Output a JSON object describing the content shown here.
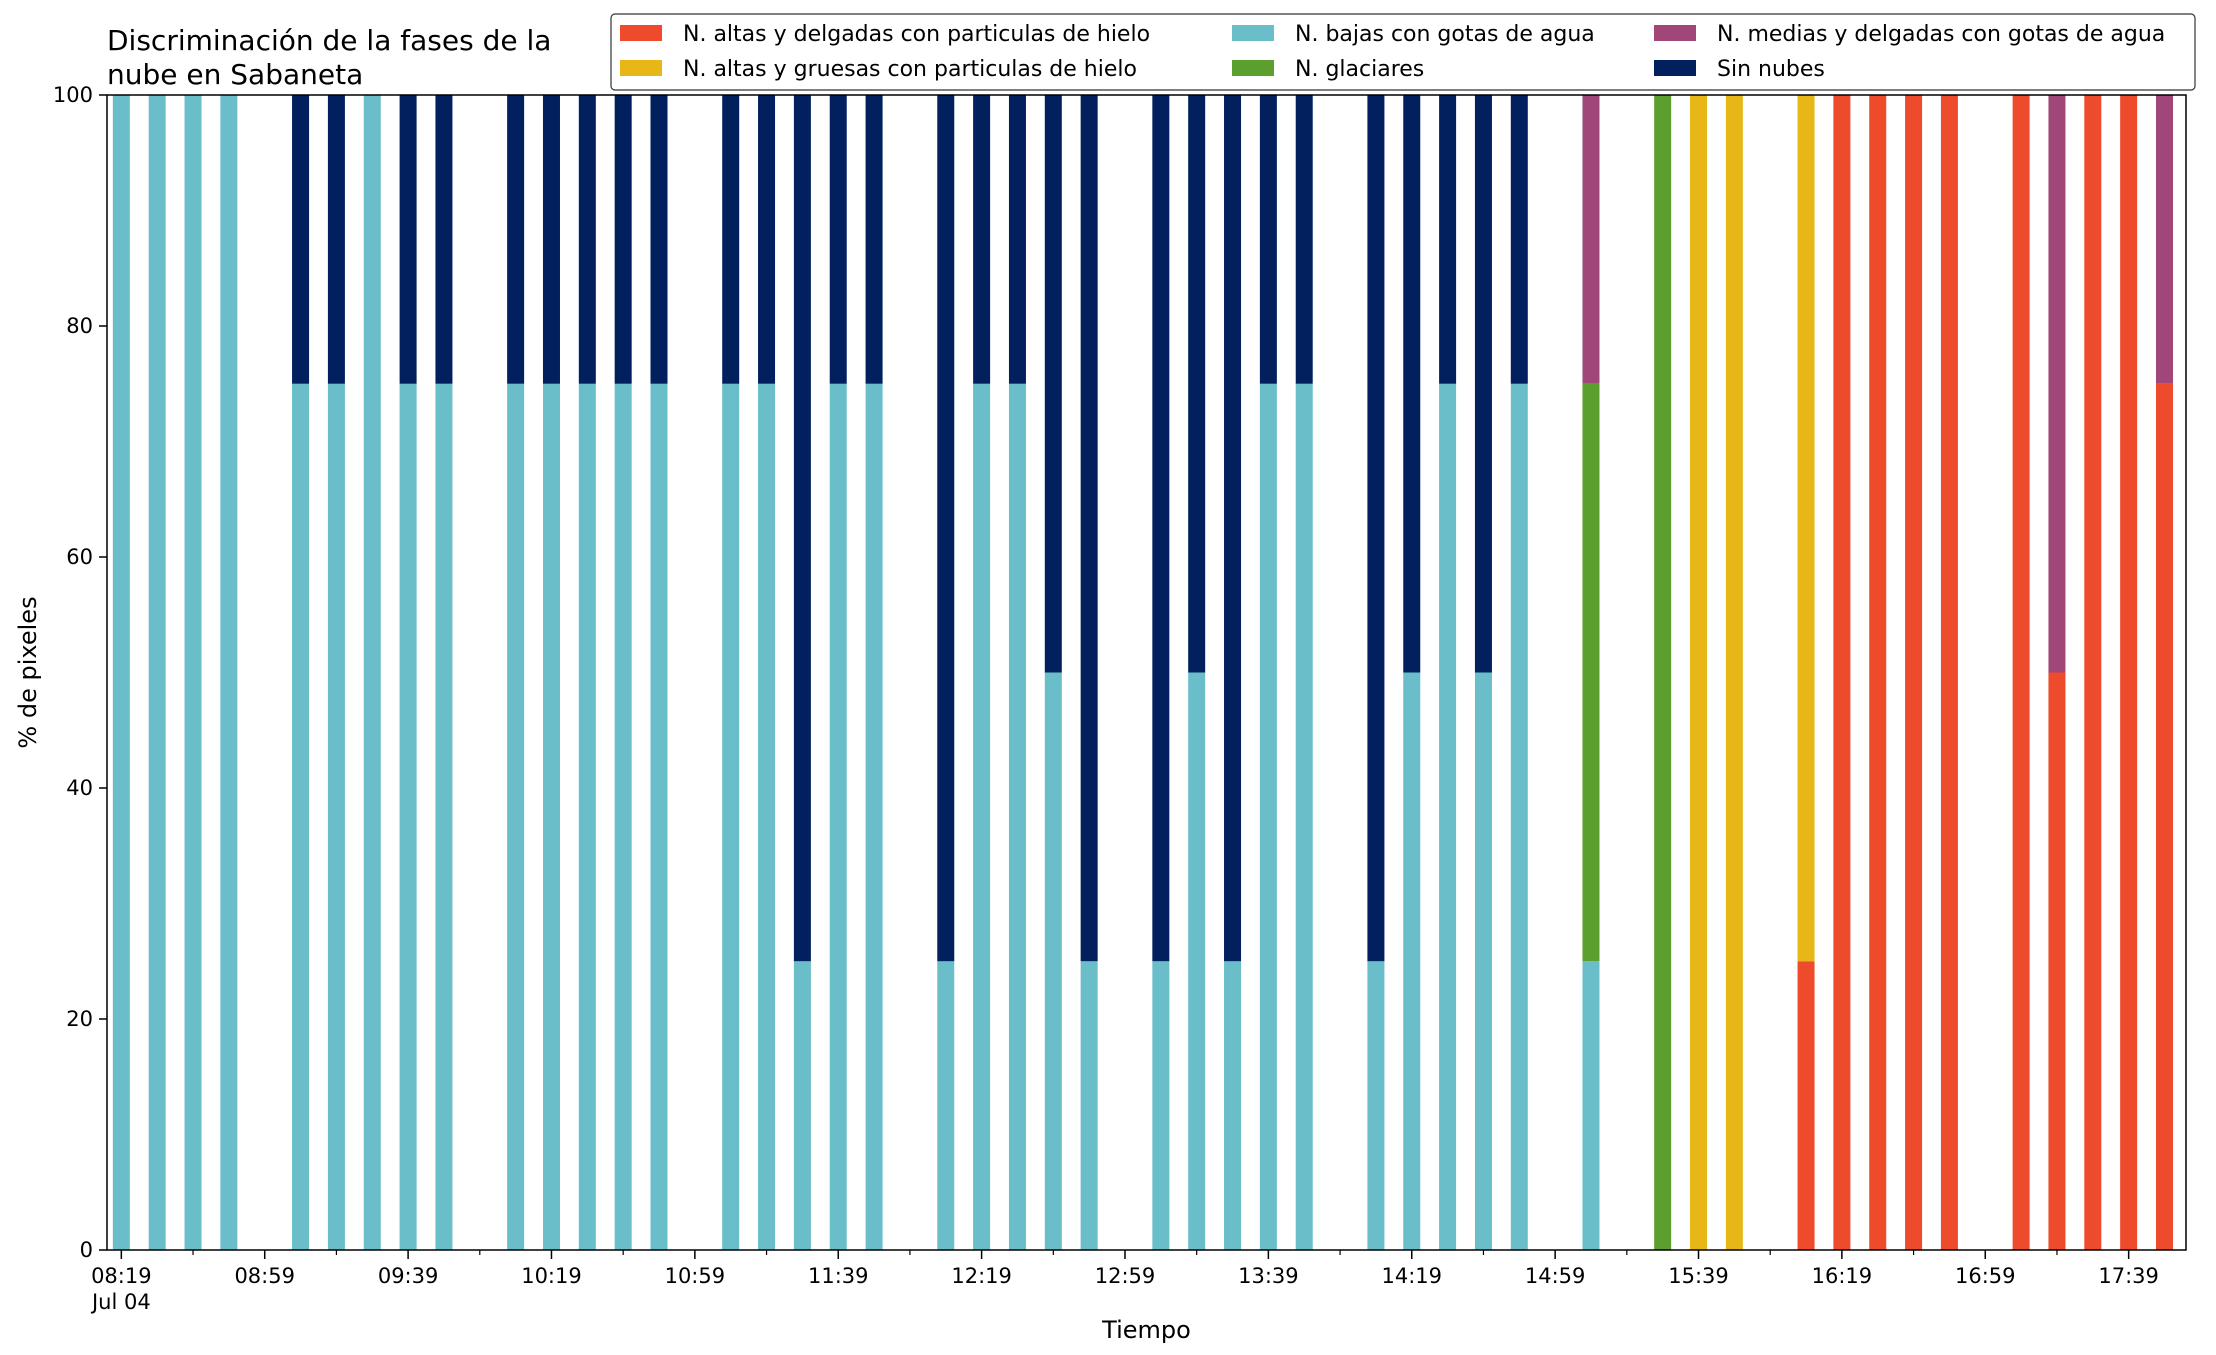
{
  "chart_data": {
    "type": "bar",
    "stacked": true,
    "title": "Discriminación de la fases de la\nnube en Sabaneta",
    "xlabel": "Tiempo",
    "ylabel": "% de pixeles",
    "ylim": [
      0,
      100
    ],
    "yticks": [
      0,
      20,
      40,
      60,
      80,
      100
    ],
    "xlim_minutes": [
      "08:15",
      "17:55"
    ],
    "x_tick_labels": [
      "08:19",
      "08:59",
      "09:39",
      "10:19",
      "10:59",
      "11:39",
      "12:19",
      "12:59",
      "13:39",
      "14:19",
      "14:59",
      "15:39",
      "16:19",
      "16:59",
      "17:39"
    ],
    "x_date_label": "Jul 04",
    "minor_tick_interval_min": 20,
    "grid": false,
    "legend_position": "top-right",
    "legend_columns": 3,
    "series_order": [
      "altas_delgadas_hielo",
      "altas_gruesas_hielo",
      "bajas_gotas",
      "glaciares",
      "medias_delgadas_gotas",
      "sin_nubes"
    ],
    "legend": [
      {
        "key": "altas_delgadas_hielo",
        "name": "N. altas y delgadas con particulas de hielo",
        "color": "#ee4a2c"
      },
      {
        "key": "bajas_gotas",
        "name": "N. bajas con gotas de agua",
        "color": "#69bec9"
      },
      {
        "key": "medias_delgadas_gotas",
        "name": "N. medias y delgadas con gotas de agua",
        "color": "#a04678"
      },
      {
        "key": "altas_gruesas_hielo",
        "name": "N. altas y gruesas con particulas de hielo",
        "color": "#e6b716"
      },
      {
        "key": "glaciares",
        "name": "N. glaciares",
        "color": "#5b9f2e"
      },
      {
        "key": "sin_nubes",
        "name": "Sin nubes",
        "color": "#021f5e"
      }
    ],
    "bars": [
      {
        "time": "08:19",
        "bajas_gotas": 100
      },
      {
        "time": "08:29",
        "bajas_gotas": 100
      },
      {
        "time": "08:39",
        "bajas_gotas": 100
      },
      {
        "time": "08:49",
        "bajas_gotas": 100
      },
      {
        "time": "09:09",
        "bajas_gotas": 75,
        "sin_nubes": 25
      },
      {
        "time": "09:19",
        "bajas_gotas": 75,
        "sin_nubes": 25
      },
      {
        "time": "09:29",
        "bajas_gotas": 100
      },
      {
        "time": "09:39",
        "bajas_gotas": 75,
        "sin_nubes": 25
      },
      {
        "time": "09:49",
        "bajas_gotas": 75,
        "sin_nubes": 25
      },
      {
        "time": "10:09",
        "bajas_gotas": 75,
        "sin_nubes": 25
      },
      {
        "time": "10:19",
        "bajas_gotas": 75,
        "sin_nubes": 25
      },
      {
        "time": "10:29",
        "bajas_gotas": 75,
        "sin_nubes": 25
      },
      {
        "time": "10:39",
        "bajas_gotas": 75,
        "sin_nubes": 25
      },
      {
        "time": "10:49",
        "bajas_gotas": 75,
        "sin_nubes": 25
      },
      {
        "time": "11:09",
        "bajas_gotas": 75,
        "sin_nubes": 25
      },
      {
        "time": "11:19",
        "bajas_gotas": 75,
        "sin_nubes": 25
      },
      {
        "time": "11:29",
        "bajas_gotas": 25,
        "sin_nubes": 75
      },
      {
        "time": "11:39",
        "bajas_gotas": 75,
        "sin_nubes": 25
      },
      {
        "time": "11:49",
        "bajas_gotas": 75,
        "sin_nubes": 25
      },
      {
        "time": "12:09",
        "bajas_gotas": 25,
        "sin_nubes": 75
      },
      {
        "time": "12:19",
        "bajas_gotas": 75,
        "sin_nubes": 25
      },
      {
        "time": "12:29",
        "bajas_gotas": 75,
        "sin_nubes": 25
      },
      {
        "time": "12:39",
        "bajas_gotas": 50,
        "sin_nubes": 50
      },
      {
        "time": "12:49",
        "bajas_gotas": 25,
        "sin_nubes": 75
      },
      {
        "time": "13:09",
        "bajas_gotas": 25,
        "sin_nubes": 75
      },
      {
        "time": "13:19",
        "bajas_gotas": 50,
        "sin_nubes": 50
      },
      {
        "time": "13:29",
        "bajas_gotas": 25,
        "sin_nubes": 75
      },
      {
        "time": "13:39",
        "bajas_gotas": 75,
        "sin_nubes": 25
      },
      {
        "time": "13:49",
        "bajas_gotas": 75,
        "sin_nubes": 25
      },
      {
        "time": "14:09",
        "bajas_gotas": 25,
        "sin_nubes": 75
      },
      {
        "time": "14:19",
        "bajas_gotas": 50,
        "sin_nubes": 50
      },
      {
        "time": "14:29",
        "bajas_gotas": 75,
        "sin_nubes": 25
      },
      {
        "time": "14:39",
        "bajas_gotas": 50,
        "sin_nubes": 50
      },
      {
        "time": "14:49",
        "bajas_gotas": 75,
        "sin_nubes": 25
      },
      {
        "time": "15:09",
        "bajas_gotas": 25,
        "glaciares": 50,
        "medias_delgadas_gotas": 25
      },
      {
        "time": "15:29",
        "glaciares": 100
      },
      {
        "time": "15:39",
        "altas_gruesas_hielo": 100
      },
      {
        "time": "15:49",
        "altas_gruesas_hielo": 100
      },
      {
        "time": "16:09",
        "altas_delgadas_hielo": 25,
        "altas_gruesas_hielo": 75
      },
      {
        "time": "16:19",
        "altas_delgadas_hielo": 100
      },
      {
        "time": "16:29",
        "altas_delgadas_hielo": 100
      },
      {
        "time": "16:39",
        "altas_delgadas_hielo": 100
      },
      {
        "time": "16:49",
        "altas_delgadas_hielo": 100
      },
      {
        "time": "17:09",
        "altas_delgadas_hielo": 100
      },
      {
        "time": "17:19",
        "altas_delgadas_hielo": 50,
        "medias_delgadas_gotas": 50
      },
      {
        "time": "17:29",
        "altas_delgadas_hielo": 100
      },
      {
        "time": "17:39",
        "altas_delgadas_hielo": 100
      },
      {
        "time": "17:49",
        "altas_delgadas_hielo": 75,
        "medias_delgadas_gotas": 25
      }
    ]
  }
}
